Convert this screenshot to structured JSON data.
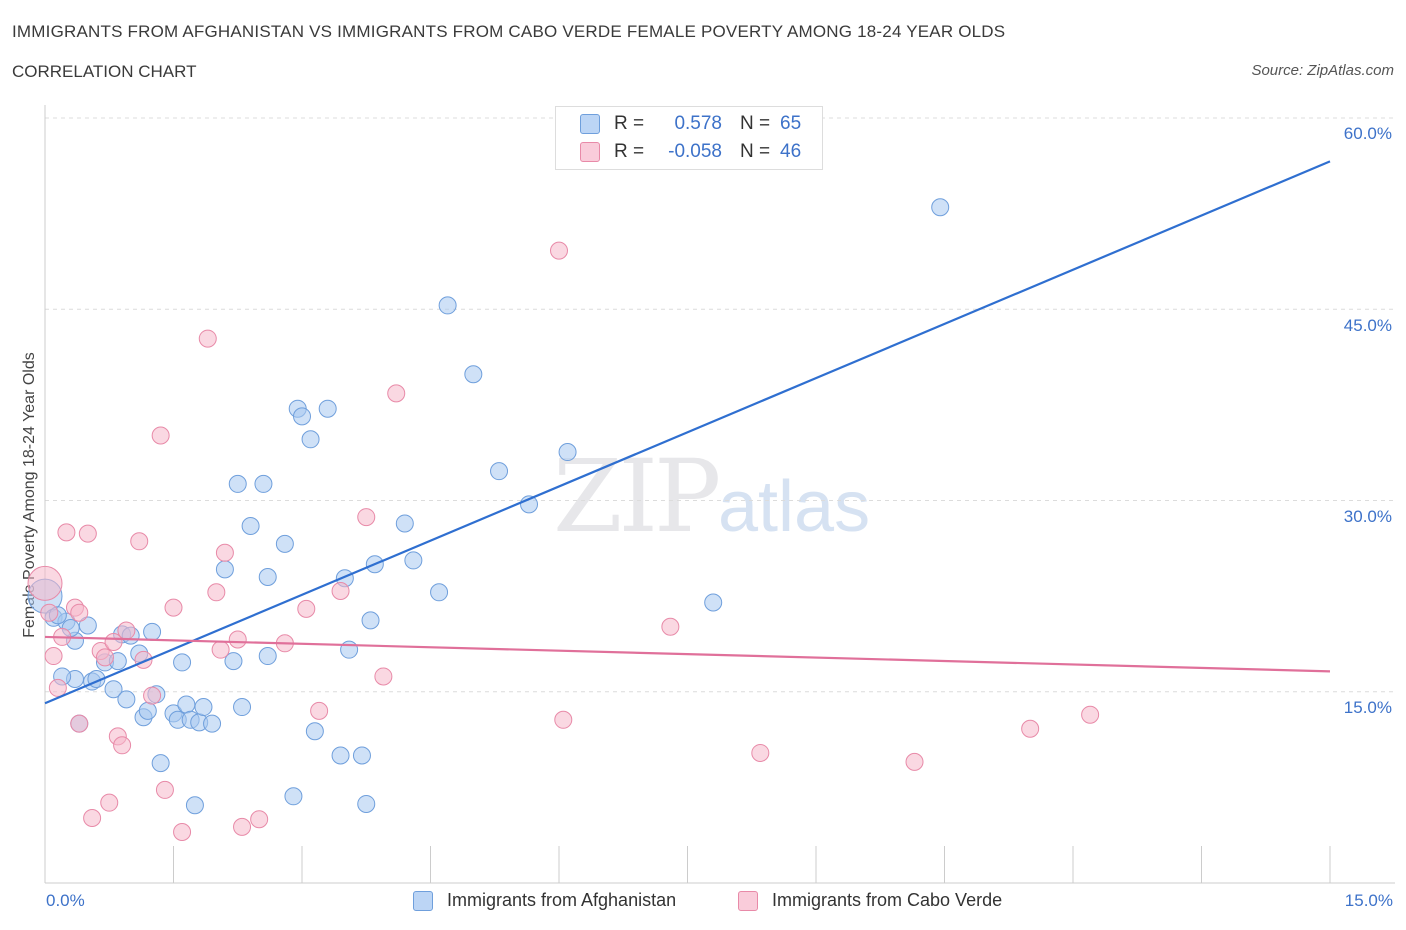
{
  "title": "IMMIGRANTS FROM AFGHANISTAN VS IMMIGRANTS FROM CABO VERDE FEMALE POVERTY AMONG 18-24 YEAR OLDS",
  "subtitle": "CORRELATION CHART",
  "source": "Source: ZipAtlas.com",
  "watermark": {
    "zip": "ZIP",
    "atlas": "atlas"
  },
  "legend": {
    "r_label": "R =",
    "n_label": "N =",
    "rows": [
      {
        "r": "0.578",
        "n": "65",
        "color": "#a8c8f0"
      },
      {
        "r": "-0.058",
        "n": "46",
        "color": "#f5b8cb"
      }
    ]
  },
  "axis": {
    "x_min_label": "0.0%",
    "x_max_label": "15.0%",
    "y_ticks": [
      "60.0%",
      "45.0%",
      "30.0%",
      "15.0%"
    ]
  },
  "chart_data": {
    "type": "scatter",
    "title": "IMMIGRANTS FROM AFGHANISTAN VS IMMIGRANTS FROM CABO VERDE FEMALE POVERTY AMONG 18-24 YEAR OLDS",
    "xlabel": "",
    "ylabel": "Female Poverty Among 18-24 Year Olds",
    "xlim": [
      0,
      15
    ],
    "ylim": [
      0,
      60
    ],
    "yticks": [
      15,
      30,
      45,
      60
    ],
    "grid": true,
    "legend_position": "bottom",
    "series": [
      {
        "name": "Immigrants from Afghanistan",
        "color": "#a8c8f0",
        "stroke": "#6f9fdc",
        "trend": {
          "x": [
            0,
            15
          ],
          "y": [
            14.1,
            56.6
          ],
          "color": "#2f6fd0"
        },
        "points": [
          [
            0.0,
            22.5
          ],
          [
            0.1,
            20.8
          ],
          [
            0.25,
            20.5
          ],
          [
            0.35,
            19.0
          ],
          [
            0.35,
            16.0
          ],
          [
            0.2,
            16.2
          ],
          [
            0.4,
            12.5
          ],
          [
            0.55,
            15.8
          ],
          [
            0.5,
            20.2
          ],
          [
            0.6,
            16.0
          ],
          [
            0.7,
            17.3
          ],
          [
            0.8,
            15.2
          ],
          [
            0.85,
            17.4
          ],
          [
            0.9,
            19.5
          ],
          [
            0.95,
            14.4
          ],
          [
            1.0,
            19.4
          ],
          [
            1.1,
            18.0
          ],
          [
            1.15,
            13.0
          ],
          [
            1.2,
            13.5
          ],
          [
            1.25,
            19.7
          ],
          [
            1.3,
            14.8
          ],
          [
            1.35,
            9.4
          ],
          [
            1.5,
            13.3
          ],
          [
            1.55,
            12.8
          ],
          [
            1.6,
            17.3
          ],
          [
            1.65,
            14.0
          ],
          [
            1.7,
            12.8
          ],
          [
            1.75,
            6.1
          ],
          [
            1.8,
            12.6
          ],
          [
            1.85,
            13.8
          ],
          [
            1.95,
            12.5
          ],
          [
            2.1,
            24.6
          ],
          [
            2.2,
            17.4
          ],
          [
            2.25,
            31.3
          ],
          [
            2.3,
            13.8
          ],
          [
            2.4,
            28.0
          ],
          [
            2.55,
            31.3
          ],
          [
            2.6,
            24.0
          ],
          [
            2.6,
            17.8
          ],
          [
            2.8,
            26.6
          ],
          [
            2.9,
            6.8
          ],
          [
            2.95,
            37.2
          ],
          [
            3.0,
            36.6
          ],
          [
            3.1,
            34.8
          ],
          [
            3.15,
            11.9
          ],
          [
            3.3,
            37.2
          ],
          [
            3.45,
            10.0
          ],
          [
            3.5,
            23.9
          ],
          [
            3.55,
            18.3
          ],
          [
            3.7,
            10.0
          ],
          [
            3.75,
            6.2
          ],
          [
            3.8,
            20.6
          ],
          [
            3.85,
            25.0
          ],
          [
            4.2,
            28.2
          ],
          [
            4.3,
            25.3
          ],
          [
            4.6,
            22.8
          ],
          [
            4.7,
            45.3
          ],
          [
            5.0,
            39.9
          ],
          [
            5.3,
            32.3
          ],
          [
            5.65,
            29.7
          ],
          [
            6.1,
            33.8
          ],
          [
            7.8,
            22.0
          ],
          [
            10.45,
            53.0
          ],
          [
            0.15,
            21.0
          ],
          [
            0.3,
            20.0
          ]
        ]
      },
      {
        "name": "Immigrants from Cabo Verde",
        "color": "#f5b8cb",
        "stroke": "#e88aa8",
        "trend": {
          "x": [
            0,
            15
          ],
          "y": [
            19.3,
            16.6
          ],
          "color": "#e0709a"
        },
        "points": [
          [
            0.0,
            23.5
          ],
          [
            0.05,
            21.2
          ],
          [
            0.1,
            17.8
          ],
          [
            0.15,
            15.3
          ],
          [
            0.2,
            19.3
          ],
          [
            0.25,
            27.5
          ],
          [
            0.35,
            21.6
          ],
          [
            0.4,
            21.2
          ],
          [
            0.4,
            12.5
          ],
          [
            0.5,
            27.4
          ],
          [
            0.55,
            5.1
          ],
          [
            0.65,
            18.2
          ],
          [
            0.7,
            17.7
          ],
          [
            0.75,
            6.3
          ],
          [
            0.8,
            18.9
          ],
          [
            0.85,
            11.5
          ],
          [
            0.9,
            10.8
          ],
          [
            0.95,
            19.8
          ],
          [
            1.1,
            26.8
          ],
          [
            1.15,
            17.5
          ],
          [
            1.25,
            14.7
          ],
          [
            1.35,
            35.1
          ],
          [
            1.4,
            7.3
          ],
          [
            1.5,
            21.6
          ],
          [
            1.6,
            4.0
          ],
          [
            1.9,
            42.7
          ],
          [
            2.0,
            22.8
          ],
          [
            2.05,
            18.3
          ],
          [
            2.1,
            25.9
          ],
          [
            2.25,
            19.1
          ],
          [
            2.3,
            4.4
          ],
          [
            2.5,
            5.0
          ],
          [
            2.8,
            18.8
          ],
          [
            3.05,
            21.5
          ],
          [
            3.2,
            13.5
          ],
          [
            3.45,
            22.9
          ],
          [
            3.75,
            28.7
          ],
          [
            3.95,
            16.2
          ],
          [
            4.1,
            38.4
          ],
          [
            6.0,
            49.6
          ],
          [
            6.05,
            12.8
          ],
          [
            7.3,
            20.1
          ],
          [
            8.35,
            10.2
          ],
          [
            10.15,
            9.5
          ],
          [
            11.5,
            12.1
          ],
          [
            12.2,
            13.2
          ]
        ]
      }
    ]
  }
}
